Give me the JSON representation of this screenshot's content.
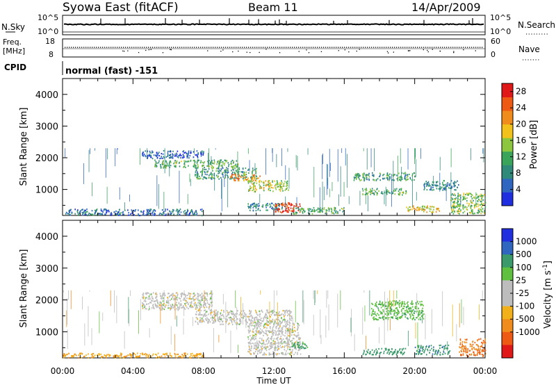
{
  "header": {
    "station": "Syowa East (fitACF)",
    "beam": "Beam 11",
    "date": "14/Apr/2009"
  },
  "noise_panel": {
    "left_label": "N.Sky",
    "right_label": "N.Search",
    "tick_top": "10^5",
    "tick_bottom": "10^0"
  },
  "freq_panel": {
    "left_label_1": "Freq.",
    "left_label_2": "[MHz]",
    "left_tick_top": "18",
    "left_tick_bottom": "8",
    "right_label": "Nave",
    "right_tick_top": "60",
    "right_tick_bottom": "0"
  },
  "cpid": {
    "label": "CPID",
    "value": "normal (fast) -151"
  },
  "colors": {
    "power": [
      "#1f2fe0",
      "#2f66bf",
      "#2f8a7a",
      "#3aa55a",
      "#8dc63f",
      "#f2c21a",
      "#f08c1c",
      "#ee5a14",
      "#e01818"
    ],
    "velocity": [
      "#e01818",
      "#ee5a14",
      "#f08c1c",
      "#f2b01a",
      "#bdbdbd",
      "#bdbdbd",
      "#5fbf3f",
      "#3a9a6a",
      "#2f66bf",
      "#1f2fe0"
    ],
    "gray": "#bdbdbd"
  },
  "chart_data": [
    {
      "type": "heatmap",
      "title": "",
      "xlabel": "",
      "ylabel": "Slant Range [km]",
      "xlim": [
        "00:00",
        "24:00"
      ],
      "ylim": [
        180,
        4500
      ],
      "x_ticks": [
        "00:00",
        "04:00",
        "08:00",
        "12:00",
        "16:00",
        "20:00",
        "00:00"
      ],
      "y_ticks": [
        "1000",
        "2000",
        "3000",
        "4000"
      ],
      "y_tick_values": [
        1000,
        2000,
        3000,
        4000
      ],
      "colorbar": {
        "label": "Power [dB]",
        "ticks": [
          "4",
          "8",
          "12",
          "16",
          "20",
          "24",
          "28"
        ],
        "range": [
          0,
          30
        ]
      },
      "echo_regions": [
        {
          "t_start": 4.5,
          "t_end": 8.0,
          "r_low": 2000,
          "r_high": 2250,
          "value": 5
        },
        {
          "t_start": 5.2,
          "t_end": 10.0,
          "r_low": 1700,
          "r_high": 1950,
          "value": 12
        },
        {
          "t_start": 7.5,
          "t_end": 11.0,
          "r_low": 1350,
          "r_high": 1700,
          "value": 10
        },
        {
          "t_start": 9.5,
          "t_end": 11.2,
          "r_low": 1300,
          "r_high": 1500,
          "value": 22
        },
        {
          "t_start": 10.5,
          "t_end": 12.8,
          "r_low": 950,
          "r_high": 1300,
          "value": 16
        },
        {
          "t_start": 10.5,
          "t_end": 12.5,
          "r_low": 350,
          "r_high": 600,
          "value": 8
        },
        {
          "t_start": 12.0,
          "t_end": 13.5,
          "r_low": 280,
          "r_high": 600,
          "value": 26
        },
        {
          "t_start": 13.0,
          "t_end": 16.0,
          "r_low": 250,
          "r_high": 450,
          "value": 12
        },
        {
          "t_start": 16.5,
          "t_end": 20.0,
          "r_low": 1300,
          "r_high": 1550,
          "value": 10
        },
        {
          "t_start": 17.0,
          "t_end": 19.5,
          "r_low": 850,
          "r_high": 1050,
          "value": 12
        },
        {
          "t_start": 19.5,
          "t_end": 21.5,
          "r_low": 300,
          "r_high": 500,
          "value": 18
        },
        {
          "t_start": 20.5,
          "t_end": 22.5,
          "r_low": 1000,
          "r_high": 1300,
          "value": 8
        },
        {
          "t_start": 22.0,
          "t_end": 24.0,
          "r_low": 250,
          "r_high": 900,
          "value": 14
        },
        {
          "t_start": 0.0,
          "t_end": 8.0,
          "r_low": 200,
          "r_high": 400,
          "value": 6
        }
      ]
    },
    {
      "type": "heatmap",
      "title": "",
      "xlabel": "Time UT",
      "ylabel": "Slant Range [km]",
      "xlim": [
        "00:00",
        "24:00"
      ],
      "ylim": [
        180,
        4500
      ],
      "x_ticks": [
        "00:00",
        "04:00",
        "08:00",
        "12:00",
        "16:00",
        "20:00",
        "00:00"
      ],
      "y_ticks": [
        "1000",
        "2000",
        "3000",
        "4000"
      ],
      "y_tick_values": [
        1000,
        2000,
        3000,
        4000
      ],
      "colorbar": {
        "label": "Velocity [m s",
        "label_sup": "-1",
        "label_end": "]",
        "ticks": [
          "1000",
          "500",
          "100",
          "25",
          "-25",
          "-100",
          "-500",
          "-1000"
        ]
      },
      "echo_regions": [
        {
          "t_start": 4.5,
          "t_end": 8.5,
          "r_low": 1700,
          "r_high": 2250,
          "value": 0
        },
        {
          "t_start": 7.5,
          "t_end": 13.0,
          "r_low": 1250,
          "r_high": 1700,
          "value": 0
        },
        {
          "t_start": 10.5,
          "t_end": 13.5,
          "r_low": 300,
          "r_high": 1300,
          "value": 0
        },
        {
          "t_start": 13.0,
          "t_end": 14.0,
          "r_low": 500,
          "r_high": 700,
          "value": 120
        },
        {
          "t_start": 17.0,
          "t_end": 19.5,
          "r_low": 300,
          "r_high": 500,
          "value": 200
        },
        {
          "t_start": 0.0,
          "t_end": 8.0,
          "r_low": 200,
          "r_high": 350,
          "value": -90
        },
        {
          "t_start": 20.0,
          "t_end": 22.0,
          "r_low": 300,
          "r_high": 600,
          "value": 400
        },
        {
          "t_start": 22.5,
          "t_end": 24.0,
          "r_low": 250,
          "r_high": 800,
          "value": -500
        },
        {
          "t_start": 17.5,
          "t_end": 20.5,
          "r_low": 1400,
          "r_high": 2000,
          "value": 80
        }
      ]
    }
  ]
}
